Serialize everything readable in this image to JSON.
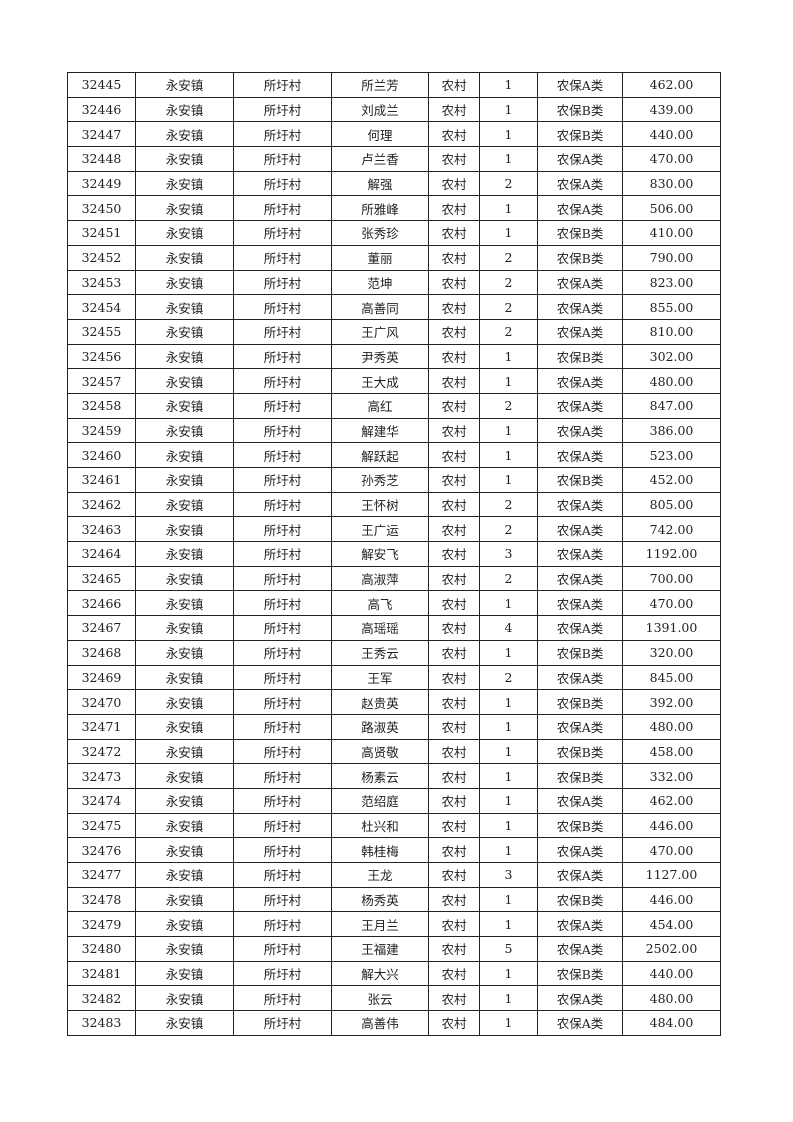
{
  "table": {
    "rows": [
      [
        "32445",
        "永安镇",
        "所圩村",
        "所兰芳",
        "农村",
        "1",
        "农保A类",
        "462.00"
      ],
      [
        "32446",
        "永安镇",
        "所圩村",
        "刘成兰",
        "农村",
        "1",
        "农保B类",
        "439.00"
      ],
      [
        "32447",
        "永安镇",
        "所圩村",
        "何理",
        "农村",
        "1",
        "农保B类",
        "440.00"
      ],
      [
        "32448",
        "永安镇",
        "所圩村",
        "卢兰香",
        "农村",
        "1",
        "农保A类",
        "470.00"
      ],
      [
        "32449",
        "永安镇",
        "所圩村",
        "解强",
        "农村",
        "2",
        "农保A类",
        "830.00"
      ],
      [
        "32450",
        "永安镇",
        "所圩村",
        "所雅峰",
        "农村",
        "1",
        "农保A类",
        "506.00"
      ],
      [
        "32451",
        "永安镇",
        "所圩村",
        "张秀珍",
        "农村",
        "1",
        "农保B类",
        "410.00"
      ],
      [
        "32452",
        "永安镇",
        "所圩村",
        "董丽",
        "农村",
        "2",
        "农保B类",
        "790.00"
      ],
      [
        "32453",
        "永安镇",
        "所圩村",
        "范坤",
        "农村",
        "2",
        "农保A类",
        "823.00"
      ],
      [
        "32454",
        "永安镇",
        "所圩村",
        "高善同",
        "农村",
        "2",
        "农保A类",
        "855.00"
      ],
      [
        "32455",
        "永安镇",
        "所圩村",
        "王广风",
        "农村",
        "2",
        "农保A类",
        "810.00"
      ],
      [
        "32456",
        "永安镇",
        "所圩村",
        "尹秀英",
        "农村",
        "1",
        "农保B类",
        "302.00"
      ],
      [
        "32457",
        "永安镇",
        "所圩村",
        "王大成",
        "农村",
        "1",
        "农保A类",
        "480.00"
      ],
      [
        "32458",
        "永安镇",
        "所圩村",
        "高红",
        "农村",
        "2",
        "农保A类",
        "847.00"
      ],
      [
        "32459",
        "永安镇",
        "所圩村",
        "解建华",
        "农村",
        "1",
        "农保A类",
        "386.00"
      ],
      [
        "32460",
        "永安镇",
        "所圩村",
        "解跃起",
        "农村",
        "1",
        "农保A类",
        "523.00"
      ],
      [
        "32461",
        "永安镇",
        "所圩村",
        "孙秀芝",
        "农村",
        "1",
        "农保B类",
        "452.00"
      ],
      [
        "32462",
        "永安镇",
        "所圩村",
        "王怀树",
        "农村",
        "2",
        "农保A类",
        "805.00"
      ],
      [
        "32463",
        "永安镇",
        "所圩村",
        "王广运",
        "农村",
        "2",
        "农保A类",
        "742.00"
      ],
      [
        "32464",
        "永安镇",
        "所圩村",
        "解安飞",
        "农村",
        "3",
        "农保A类",
        "1192.00"
      ],
      [
        "32465",
        "永安镇",
        "所圩村",
        "高淑萍",
        "农村",
        "2",
        "农保A类",
        "700.00"
      ],
      [
        "32466",
        "永安镇",
        "所圩村",
        "高飞",
        "农村",
        "1",
        "农保A类",
        "470.00"
      ],
      [
        "32467",
        "永安镇",
        "所圩村",
        "高瑶瑶",
        "农村",
        "4",
        "农保A类",
        "1391.00"
      ],
      [
        "32468",
        "永安镇",
        "所圩村",
        "王秀云",
        "农村",
        "1",
        "农保B类",
        "320.00"
      ],
      [
        "32469",
        "永安镇",
        "所圩村",
        "王军",
        "农村",
        "2",
        "农保A类",
        "845.00"
      ],
      [
        "32470",
        "永安镇",
        "所圩村",
        "赵贵英",
        "农村",
        "1",
        "农保B类",
        "392.00"
      ],
      [
        "32471",
        "永安镇",
        "所圩村",
        "路淑英",
        "农村",
        "1",
        "农保A类",
        "480.00"
      ],
      [
        "32472",
        "永安镇",
        "所圩村",
        "高贤敬",
        "农村",
        "1",
        "农保B类",
        "458.00"
      ],
      [
        "32473",
        "永安镇",
        "所圩村",
        "杨素云",
        "农村",
        "1",
        "农保B类",
        "332.00"
      ],
      [
        "32474",
        "永安镇",
        "所圩村",
        "范绍庭",
        "农村",
        "1",
        "农保A类",
        "462.00"
      ],
      [
        "32475",
        "永安镇",
        "所圩村",
        "杜兴和",
        "农村",
        "1",
        "农保B类",
        "446.00"
      ],
      [
        "32476",
        "永安镇",
        "所圩村",
        "韩桂梅",
        "农村",
        "1",
        "农保A类",
        "470.00"
      ],
      [
        "32477",
        "永安镇",
        "所圩村",
        "王龙",
        "农村",
        "3",
        "农保A类",
        "1127.00"
      ],
      [
        "32478",
        "永安镇",
        "所圩村",
        "杨秀英",
        "农村",
        "1",
        "农保B类",
        "446.00"
      ],
      [
        "32479",
        "永安镇",
        "所圩村",
        "王月兰",
        "农村",
        "1",
        "农保A类",
        "454.00"
      ],
      [
        "32480",
        "永安镇",
        "所圩村",
        "王福建",
        "农村",
        "5",
        "农保A类",
        "2502.00"
      ],
      [
        "32481",
        "永安镇",
        "所圩村",
        "解大兴",
        "农村",
        "1",
        "农保B类",
        "440.00"
      ],
      [
        "32482",
        "永安镇",
        "所圩村",
        "张云",
        "农村",
        "1",
        "农保A类",
        "480.00"
      ],
      [
        "32483",
        "永安镇",
        "所圩村",
        "高善伟",
        "农村",
        "1",
        "农保A类",
        "484.00"
      ]
    ]
  }
}
